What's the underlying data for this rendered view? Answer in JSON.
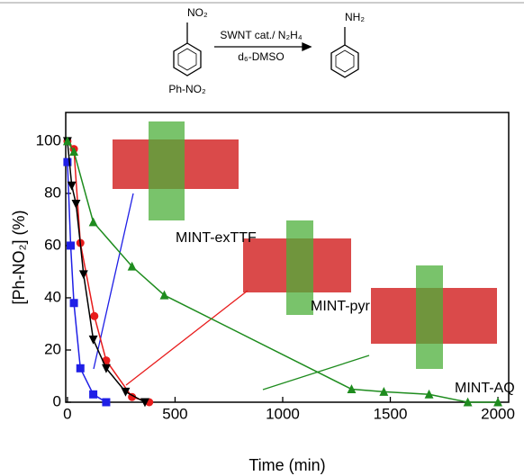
{
  "chart_data": {
    "type": "scatter",
    "scheme": {
      "reactant_group": "NO₂",
      "reactant": "Ph-NO₂",
      "reagent": "SWNT cat./ N₂H₄",
      "solvent": "d₆-DMSO",
      "product_group": "NH₂"
    },
    "x_label": "Time (min)",
    "y_label": "[Ph-NO₂] (%)",
    "xlim": [
      -8,
      2050
    ],
    "xticks": [
      0,
      500,
      1000,
      1500,
      2000
    ],
    "ylim": [
      0,
      111
    ],
    "yticks": [
      0,
      20,
      40,
      60,
      80,
      100
    ],
    "series": [
      {
        "name": "MINT-exTTF",
        "color": "#1f1fe6",
        "marker": "square",
        "x": [
          0,
          15,
          30,
          60,
          120,
          180
        ],
        "values": [
          92,
          60,
          38,
          13,
          3,
          0
        ]
      },
      {
        "name": "MINT-pyr",
        "color": "#e81c1c",
        "marker": "circle",
        "x": [
          0,
          30,
          60,
          125,
          180,
          300,
          380
        ],
        "values": [
          100,
          97,
          61,
          33,
          16,
          2,
          0
        ]
      },
      {
        "color": "#000000",
        "marker": "triangle-down",
        "x": [
          0,
          20,
          40,
          75,
          120,
          180,
          270,
          360
        ],
        "values": [
          100,
          83,
          76,
          49,
          24,
          13,
          4,
          0
        ]
      },
      {
        "name": "MINT-AQ",
        "color": "#1e8c1e",
        "marker": "triangle-up",
        "x": [
          0,
          30,
          120,
          300,
          450,
          1320,
          1470,
          1680,
          1860,
          2000
        ],
        "values": [
          100,
          96,
          69,
          52,
          41,
          5,
          4,
          3,
          0,
          0
        ]
      }
    ]
  }
}
